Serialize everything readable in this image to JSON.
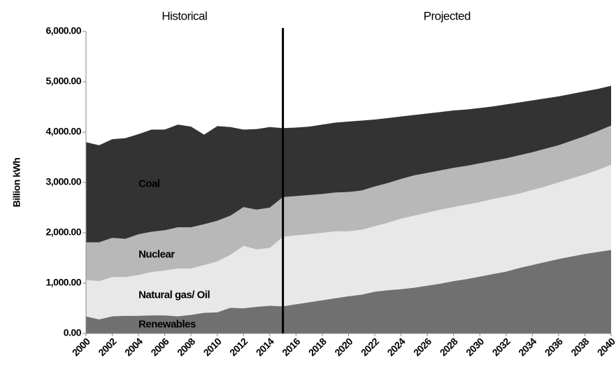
{
  "chart_data": {
    "type": "stacked-area",
    "ylabel": "Billion kWh",
    "annotations": [
      {
        "text": "Historical"
      },
      {
        "text": "Projected"
      }
    ],
    "divider": 2015,
    "x": [
      2000,
      2001,
      2002,
      2003,
      2004,
      2005,
      2006,
      2007,
      2008,
      2009,
      2010,
      2011,
      2012,
      2013,
      2014,
      2015,
      2016,
      2017,
      2018,
      2019,
      2020,
      2021,
      2022,
      2023,
      2024,
      2025,
      2026,
      2027,
      2028,
      2029,
      2030,
      2031,
      2032,
      2033,
      2034,
      2035,
      2036,
      2037,
      2038,
      2039,
      2040
    ],
    "xlim": [
      2000,
      2040
    ],
    "xticks": [
      2000,
      2002,
      2004,
      2006,
      2008,
      2010,
      2012,
      2014,
      2016,
      2018,
      2020,
      2022,
      2024,
      2026,
      2028,
      2030,
      2032,
      2034,
      2036,
      2038,
      2040
    ],
    "ylim": [
      0,
      6000
    ],
    "yticks": [
      {
        "value": 0,
        "label": "0.00"
      },
      {
        "value": 1000,
        "label": "1,000.00"
      },
      {
        "value": 2000,
        "label": "2,000.00"
      },
      {
        "value": 3000,
        "label": "3,000.00"
      },
      {
        "value": 4000,
        "label": "4,000.00"
      },
      {
        "value": 5000,
        "label": "5,000.00"
      },
      {
        "value": 6000,
        "label": "6,000.00"
      }
    ],
    "series": [
      {
        "name": "Renewables",
        "color": "#707070",
        "values": [
          340,
          280,
          340,
          350,
          350,
          360,
          360,
          340,
          370,
          410,
          420,
          510,
          500,
          530,
          550,
          540,
          580,
          620,
          660,
          700,
          740,
          770,
          830,
          860,
          880,
          910,
          950,
          990,
          1040,
          1080,
          1130,
          1180,
          1230,
          1300,
          1360,
          1420,
          1480,
          1530,
          1580,
          1620,
          1660
        ]
      },
      {
        "name": "Natural gas/ Oil",
        "color": "#e8e8e8",
        "values": [
          720,
          760,
          780,
          770,
          810,
          860,
          890,
          950,
          920,
          950,
          1010,
          1050,
          1240,
          1140,
          1150,
          1380,
          1370,
          1350,
          1340,
          1330,
          1290,
          1290,
          1300,
          1340,
          1400,
          1430,
          1450,
          1470,
          1470,
          1480,
          1480,
          1490,
          1490,
          1480,
          1490,
          1500,
          1520,
          1550,
          1580,
          1630,
          1690
        ]
      },
      {
        "name": "Nuclear",
        "color": "#b8b8b8",
        "values": [
          750,
          770,
          780,
          760,
          810,
          800,
          800,
          820,
          820,
          810,
          810,
          780,
          770,
          790,
          800,
          790,
          780,
          780,
          770,
          770,
          780,
          780,
          790,
          790,
          790,
          800,
          790,
          780,
          780,
          770,
          770,
          760,
          760,
          760,
          750,
          750,
          740,
          750,
          760,
          770,
          780
        ]
      },
      {
        "name": "Coal",
        "color": "#333333",
        "values": [
          1990,
          1930,
          1960,
          2000,
          1990,
          2030,
          2000,
          2040,
          2000,
          1780,
          1880,
          1760,
          1540,
          1600,
          1600,
          1370,
          1360,
          1360,
          1380,
          1390,
          1400,
          1390,
          1330,
          1290,
          1240,
          1200,
          1180,
          1160,
          1140,
          1120,
          1100,
          1080,
          1070,
          1050,
          1030,
          1000,
          970,
          930,
          890,
          840,
          790
        ]
      }
    ]
  }
}
